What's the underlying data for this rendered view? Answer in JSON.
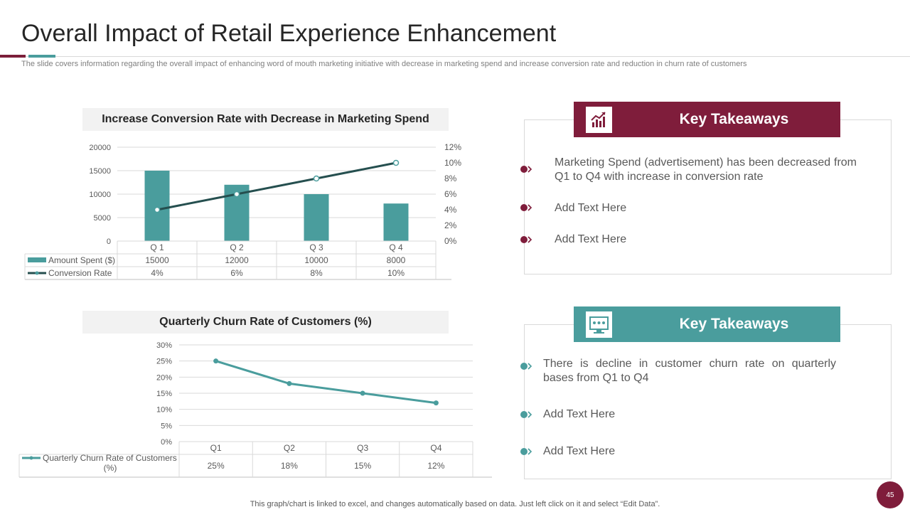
{
  "slide": {
    "title": "Overall Impact of Retail Experience Enhancement",
    "subtitle": "The slide covers information regarding the overall impact of enhancing word of mouth marketing initiative with decrease in marketing spend and increase conversion rate and reduction in churn rate of customers",
    "footer_note": "This graph/chart is linked to excel,  and changes automatically based on data. Just left click on it and select “Edit Data”.",
    "page_number": "45"
  },
  "colors": {
    "maroon": "#7f1d3b",
    "teal": "#4a9d9d",
    "dark_line": "#254f4f"
  },
  "takeaways": [
    {
      "heading": "Key Takeaways",
      "icon": "chart-growth-icon",
      "bullets": [
        "Marketing Spend (advertisement) has been decreased from Q1 to Q4 with increase in conversion rate",
        "Add Text Here",
        "Add Text Here"
      ]
    },
    {
      "heading": "Key Takeaways",
      "icon": "monitor-chart-icon",
      "bullets": [
        "There is decline in customer churn rate on quarterly bases from Q1 to Q4",
        "Add Text Here",
        "Add Text Here"
      ]
    }
  ],
  "chart_data": [
    {
      "type": "bar",
      "title": "Increase Conversion Rate with Decrease in Marketing Spend",
      "categories": [
        "Q 1",
        "Q 2",
        "Q 3",
        "Q 4"
      ],
      "y_ticks": [
        "20000",
        "15000",
        "10000",
        "5000",
        "0"
      ],
      "y2_ticks": [
        "12%",
        "10%",
        "8%",
        "6%",
        "4%",
        "2%",
        "0%"
      ],
      "ylim": [
        0,
        20000
      ],
      "y2lim": [
        0,
        12
      ],
      "series": [
        {
          "name": "Amount Spent ($)",
          "kind": "bar",
          "values": [
            15000,
            12000,
            10000,
            8000
          ],
          "table": [
            "15000",
            "12000",
            "10000",
            "8000"
          ]
        },
        {
          "name": "Conversion Rate",
          "kind": "line",
          "axis": "secondary",
          "values": [
            4,
            6,
            8,
            10
          ],
          "table": [
            "4%",
            "6%",
            "8%",
            "10%"
          ]
        }
      ]
    },
    {
      "type": "line",
      "title": "Quarterly Churn Rate of Customers (%)",
      "categories": [
        "Q1",
        "Q2",
        "Q3",
        "Q4"
      ],
      "y_ticks": [
        "30%",
        "25%",
        "20%",
        "15%",
        "10%",
        "5%",
        "0%"
      ],
      "ylim": [
        0,
        30
      ],
      "series": [
        {
          "name": "Quarterly Churn Rate of Customers (%)",
          "values": [
            25,
            18,
            15,
            12
          ],
          "table": [
            "25%",
            "18%",
            "15%",
            "12%"
          ]
        }
      ]
    }
  ]
}
